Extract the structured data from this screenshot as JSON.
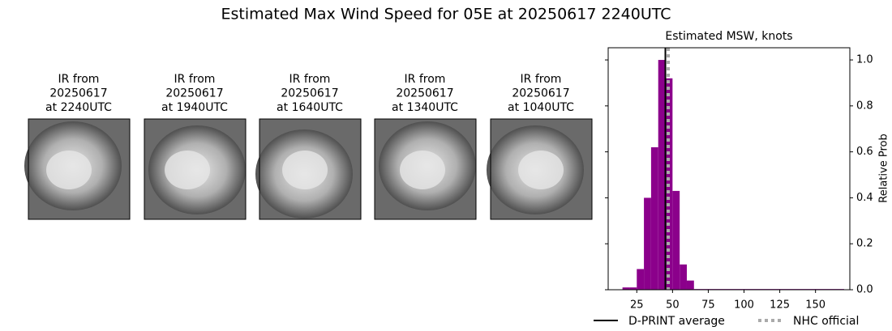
{
  "title": "Estimated Max Wind Speed for 05E at 20250617 2240UTC",
  "images": [
    {
      "lines": [
        "IR from",
        "20250617",
        "at 2240UTC"
      ]
    },
    {
      "lines": [
        "IR from",
        "20250617",
        "at 1940UTC"
      ]
    },
    {
      "lines": [
        "IR from",
        "20250617",
        "at 1640UTC"
      ]
    },
    {
      "lines": [
        "IR from",
        "20250617",
        "at 1340UTC"
      ]
    },
    {
      "lines": [
        "IR from",
        "20250617",
        "at 1040UTC"
      ]
    }
  ],
  "chart_data": {
    "type": "histogram",
    "title": "Estimated MSW, knots",
    "y_label": "Relative Prob",
    "bins": [
      15,
      20,
      25,
      30,
      35,
      40,
      45,
      50,
      55,
      60,
      65,
      170
    ],
    "values": [
      0.01,
      0.01,
      0.09,
      0.4,
      0.62,
      1.0,
      0.92,
      0.43,
      0.11,
      0.04,
      0.003
    ],
    "color": "#8b008b",
    "lines": [
      {
        "name": "D-PRINT average",
        "x": 45,
        "color": "#000000",
        "style": "solid"
      },
      {
        "name": "NHC official",
        "x": 47,
        "color": "#aaaaaa",
        "style": "dotted"
      }
    ],
    "xlim": [
      5,
      174
    ],
    "xticks": [
      25,
      50,
      75,
      100,
      125,
      150
    ],
    "ylim": [
      0,
      1.053
    ],
    "yticks": [
      {
        "value": 0,
        "label": "0.0"
      },
      {
        "value": 0.2,
        "label": "0.2"
      },
      {
        "value": 0.4,
        "label": "0.4"
      },
      {
        "value": 0.6,
        "label": "0.6"
      },
      {
        "value": 0.8,
        "label": "0.8"
      },
      {
        "value": 1.0,
        "label": "1.0"
      }
    ],
    "y_axis_side": "right"
  }
}
